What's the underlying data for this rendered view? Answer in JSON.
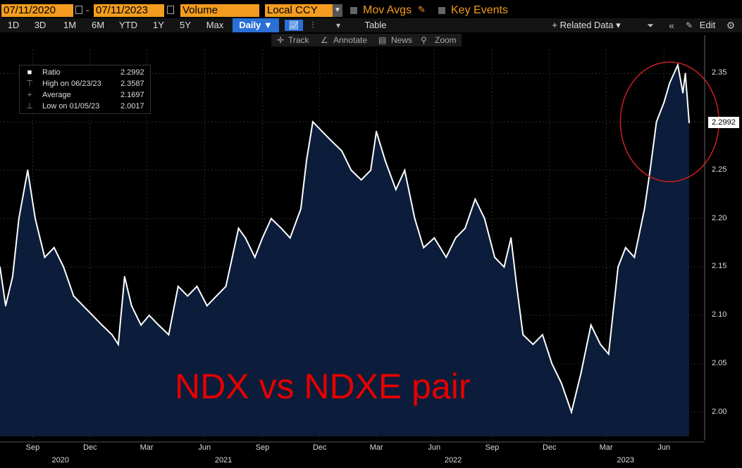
{
  "toolbar": {
    "start_date": "07/11/2020",
    "end_date": "07/11/2023",
    "date_sep": "-",
    "volume": "Volume",
    "currency": "Local CCY",
    "mov_avgs": "Mov Avgs",
    "key_events": "Key Events"
  },
  "periods": [
    "1D",
    "3D",
    "1M",
    "6M",
    "YTD",
    "1Y",
    "5Y",
    "Max"
  ],
  "frequency": "Daily ▼",
  "table_label": "Table",
  "related_data": "+ Related Data ▾",
  "edit_label": "Edit",
  "tools": {
    "track": "Track",
    "annotate": "Annotate",
    "news": "News",
    "zoom": "Zoom"
  },
  "legend": {
    "ratio_label": "Ratio",
    "ratio_value": "2.2992",
    "high_label": "High on 06/23/23",
    "high_value": "2.3587",
    "avg_label": "Average",
    "avg_value": "2.1697",
    "low_label": "Low on 01/05/23",
    "low_value": "2.0017"
  },
  "overlay_text": "NDX vs NDXE pair",
  "colors": {
    "accent": "#f39c1f",
    "area_fill": "#0b1d3a",
    "line": "#ffffff",
    "annotation": "#e60000",
    "active": "#2a6fd6"
  },
  "chart_data": {
    "type": "area",
    "series": [
      {
        "name": "Ratio",
        "points": [
          [
            "2020-07-11",
            2.15
          ],
          [
            "2020-07-20",
            2.11
          ],
          [
            "2020-07-31",
            2.14
          ],
          [
            "2020-08-10",
            2.2
          ],
          [
            "2020-08-24",
            2.25
          ],
          [
            "2020-09-05",
            2.2
          ],
          [
            "2020-09-20",
            2.16
          ],
          [
            "2020-10-05",
            2.17
          ],
          [
            "2020-10-20",
            2.15
          ],
          [
            "2020-11-05",
            2.12
          ],
          [
            "2020-11-20",
            2.11
          ],
          [
            "2020-12-05",
            2.1
          ],
          [
            "2020-12-20",
            2.09
          ],
          [
            "2021-01-05",
            2.08
          ],
          [
            "2021-01-15",
            2.07
          ],
          [
            "2021-01-25",
            2.14
          ],
          [
            "2021-02-05",
            2.11
          ],
          [
            "2021-02-20",
            2.09
          ],
          [
            "2021-03-05",
            2.1
          ],
          [
            "2021-03-20",
            2.09
          ],
          [
            "2021-04-05",
            2.08
          ],
          [
            "2021-04-20",
            2.13
          ],
          [
            "2021-05-05",
            2.12
          ],
          [
            "2021-05-20",
            2.13
          ],
          [
            "2021-06-05",
            2.11
          ],
          [
            "2021-06-20",
            2.12
          ],
          [
            "2021-07-05",
            2.13
          ],
          [
            "2021-07-15",
            2.16
          ],
          [
            "2021-07-25",
            2.19
          ],
          [
            "2021-08-05",
            2.18
          ],
          [
            "2021-08-20",
            2.16
          ],
          [
            "2021-09-01",
            2.18
          ],
          [
            "2021-09-15",
            2.2
          ],
          [
            "2021-10-01",
            2.19
          ],
          [
            "2021-10-15",
            2.18
          ],
          [
            "2021-11-01",
            2.21
          ],
          [
            "2021-11-10",
            2.26
          ],
          [
            "2021-11-20",
            2.3
          ],
          [
            "2021-12-05",
            2.29
          ],
          [
            "2021-12-20",
            2.28
          ],
          [
            "2022-01-05",
            2.27
          ],
          [
            "2022-01-20",
            2.25
          ],
          [
            "2022-02-05",
            2.24
          ],
          [
            "2022-02-20",
            2.25
          ],
          [
            "2022-03-01",
            2.29
          ],
          [
            "2022-03-15",
            2.26
          ],
          [
            "2022-04-01",
            2.23
          ],
          [
            "2022-04-15",
            2.25
          ],
          [
            "2022-05-01",
            2.2
          ],
          [
            "2022-05-15",
            2.17
          ],
          [
            "2022-06-01",
            2.18
          ],
          [
            "2022-06-20",
            2.16
          ],
          [
            "2022-07-05",
            2.18
          ],
          [
            "2022-07-20",
            2.19
          ],
          [
            "2022-08-05",
            2.22
          ],
          [
            "2022-08-20",
            2.2
          ],
          [
            "2022-09-05",
            2.16
          ],
          [
            "2022-09-20",
            2.15
          ],
          [
            "2022-10-01",
            2.18
          ],
          [
            "2022-10-10",
            2.13
          ],
          [
            "2022-10-20",
            2.08
          ],
          [
            "2022-11-05",
            2.07
          ],
          [
            "2022-11-20",
            2.08
          ],
          [
            "2022-12-05",
            2.05
          ],
          [
            "2022-12-20",
            2.03
          ],
          [
            "2023-01-05",
            2.0
          ],
          [
            "2023-01-20",
            2.04
          ],
          [
            "2023-02-05",
            2.09
          ],
          [
            "2023-02-20",
            2.07
          ],
          [
            "2023-03-05",
            2.06
          ],
          [
            "2023-03-20",
            2.15
          ],
          [
            "2023-04-01",
            2.17
          ],
          [
            "2023-04-15",
            2.16
          ],
          [
            "2023-05-01",
            2.21
          ],
          [
            "2023-05-10",
            2.25
          ],
          [
            "2023-05-20",
            2.3
          ],
          [
            "2023-06-01",
            2.32
          ],
          [
            "2023-06-10",
            2.34
          ],
          [
            "2023-06-23",
            2.3587
          ],
          [
            "2023-07-01",
            2.33
          ],
          [
            "2023-07-05",
            2.35
          ],
          [
            "2023-07-11",
            2.2992
          ]
        ]
      }
    ],
    "x_range": [
      "2020-07-11",
      "2023-07-11"
    ],
    "ylim": [
      1.975,
      2.375
    ],
    "y_ticks": [
      "2.00",
      "2.05",
      "2.10",
      "2.15",
      "2.20",
      "2.25",
      "2.30",
      "2.35"
    ],
    "last_value_label": "2.2992",
    "x_month_ticks": [
      {
        "label": "Sep",
        "date": "2020-09-01"
      },
      {
        "label": "Dec",
        "date": "2020-12-01"
      },
      {
        "label": "Mar",
        "date": "2021-03-01"
      },
      {
        "label": "Jun",
        "date": "2021-06-01"
      },
      {
        "label": "Sep",
        "date": "2021-09-01"
      },
      {
        "label": "Dec",
        "date": "2021-12-01"
      },
      {
        "label": "Mar",
        "date": "2022-03-01"
      },
      {
        "label": "Jun",
        "date": "2022-06-01"
      },
      {
        "label": "Sep",
        "date": "2022-09-01"
      },
      {
        "label": "Dec",
        "date": "2022-12-01"
      },
      {
        "label": "Mar",
        "date": "2023-03-01"
      },
      {
        "label": "Jun",
        "date": "2023-06-01"
      }
    ],
    "x_year_labels": [
      {
        "label": "2020",
        "date": "2020-10-15"
      },
      {
        "label": "2021",
        "date": "2021-07-01"
      },
      {
        "label": "2022",
        "date": "2022-07-01"
      },
      {
        "label": "2023",
        "date": "2023-04-01"
      }
    ],
    "grid": true,
    "highlight_circle": {
      "center_date": "2023-06-10",
      "center_value": 2.3,
      "color": "#cc1f1f"
    }
  }
}
